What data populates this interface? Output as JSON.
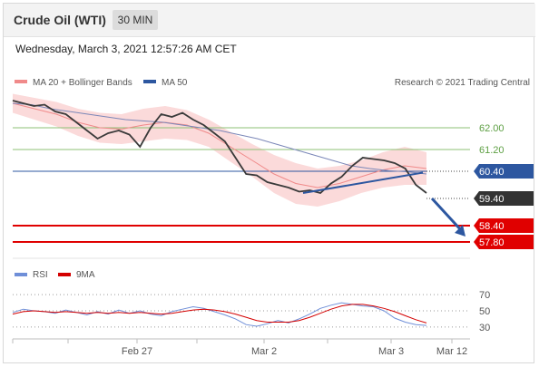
{
  "header": {
    "title": "Crude Oil (WTI)",
    "timeframe": "30 MIN"
  },
  "timestamp": "Wednesday, March 3, 2021 12:57:26 AM CET",
  "legend": {
    "ma_bb": "MA 20 + Bollinger Bands",
    "ma50": "MA 50",
    "credit": "Research © 2021 Trading Central"
  },
  "rsi_legend": {
    "rsi": "RSI",
    "ma9": "9MA"
  },
  "colors": {
    "bollinger": "#f08a8a",
    "ma50": "#2d57a0",
    "support_line": "#2d57a0",
    "resistance_red": "#e00000",
    "green_level": "#8cc276",
    "rsi": "#6f8fd8",
    "rsi_ma": "#d40000",
    "last_price_tag": "#333333"
  },
  "chart_data": {
    "type": "line",
    "title": "Crude Oil (WTI)",
    "timeframe": "30 MIN",
    "x_tick_labels": [
      "Feb 27",
      "Mar 2",
      "Mar 3",
      "Mar 12"
    ],
    "ylim": [
      57.3,
      63.2
    ],
    "price_levels": [
      {
        "value": 62.0,
        "label": "62.00",
        "type": "resistance",
        "color": "#8cc276"
      },
      {
        "value": 61.2,
        "label": "61.20",
        "type": "resistance",
        "color": "#8cc276"
      },
      {
        "value": 60.4,
        "label": "60.40",
        "type": "pivot",
        "color": "#2d57a0"
      },
      {
        "value": 59.4,
        "label": "59.40",
        "type": "last",
        "color": "#333333"
      },
      {
        "value": 58.4,
        "label": "58.40",
        "type": "support",
        "color": "#e00000"
      },
      {
        "value": 57.8,
        "label": "57.80",
        "type": "support",
        "color": "#e00000"
      }
    ],
    "price_series": [
      63.0,
      62.9,
      62.8,
      62.85,
      62.6,
      62.5,
      62.2,
      61.9,
      61.6,
      61.8,
      61.9,
      61.75,
      61.3,
      62.0,
      62.5,
      62.4,
      62.55,
      62.3,
      62.1,
      61.8,
      61.5,
      60.9,
      60.3,
      60.25,
      60.0,
      59.9,
      59.8,
      59.65,
      59.7,
      59.6,
      59.95,
      60.2,
      60.6,
      60.9,
      60.85,
      60.8,
      60.7,
      60.5,
      59.9,
      59.6
    ],
    "ma50": [
      62.9,
      62.85,
      62.7,
      62.6,
      62.5,
      62.4,
      62.3,
      62.25,
      62.2,
      62.1,
      62.0,
      61.9,
      61.75,
      61.6,
      61.4,
      61.2,
      61.0,
      60.8,
      60.6,
      60.5,
      60.42,
      60.38,
      60.3
    ],
    "bollinger_ma20": [
      62.9,
      62.7,
      62.5,
      62.2,
      62.0,
      61.95,
      62.1,
      62.2,
      62.1,
      61.8,
      61.3,
      60.8,
      60.3,
      59.95,
      59.8,
      59.95,
      60.2,
      60.45,
      60.6,
      60.5
    ],
    "trendline": {
      "from": 59.6,
      "to": 60.35
    },
    "projection_arrow": {
      "from": 59.4,
      "to": 57.8
    },
    "rsi": {
      "ticks": [
        "70",
        "50",
        "30"
      ],
      "ylim": [
        22,
        78
      ],
      "values": [
        48,
        52,
        50,
        49,
        47,
        51,
        48,
        45,
        49,
        46,
        51,
        47,
        50,
        46,
        44,
        49,
        52,
        55,
        53,
        49,
        45,
        40,
        33,
        31,
        34,
        38,
        35,
        40,
        46,
        53,
        57,
        60,
        58,
        56,
        55,
        50,
        41,
        36,
        33,
        32
      ],
      "ma9": [
        46,
        49,
        50,
        49,
        48,
        49,
        48,
        47,
        48,
        47,
        48,
        47,
        48,
        47,
        46,
        47,
        49,
        51,
        52,
        51,
        49,
        46,
        42,
        38,
        36,
        36,
        36,
        38,
        42,
        47,
        52,
        56,
        58,
        58,
        56,
        53,
        49,
        44,
        39,
        35
      ]
    }
  }
}
